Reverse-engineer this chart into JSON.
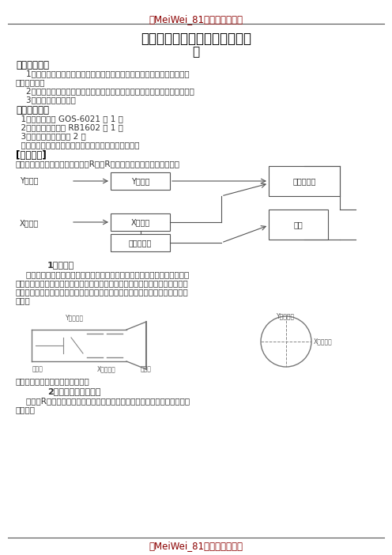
{
  "watermark_text": "【MeiWei_81重点信鉴文档】",
  "watermark_color": "#8B0000",
  "title_line1": "《示波器的使用》实验示范报告",
  "title_line2": "阿",
  "title_color": "#000000",
  "body_color": "#333333",
  "bg_color": "#ffffff",
  "footer_text": "【MeiWei_81重点信鉴文档】",
  "footer_color": "#8B0000"
}
